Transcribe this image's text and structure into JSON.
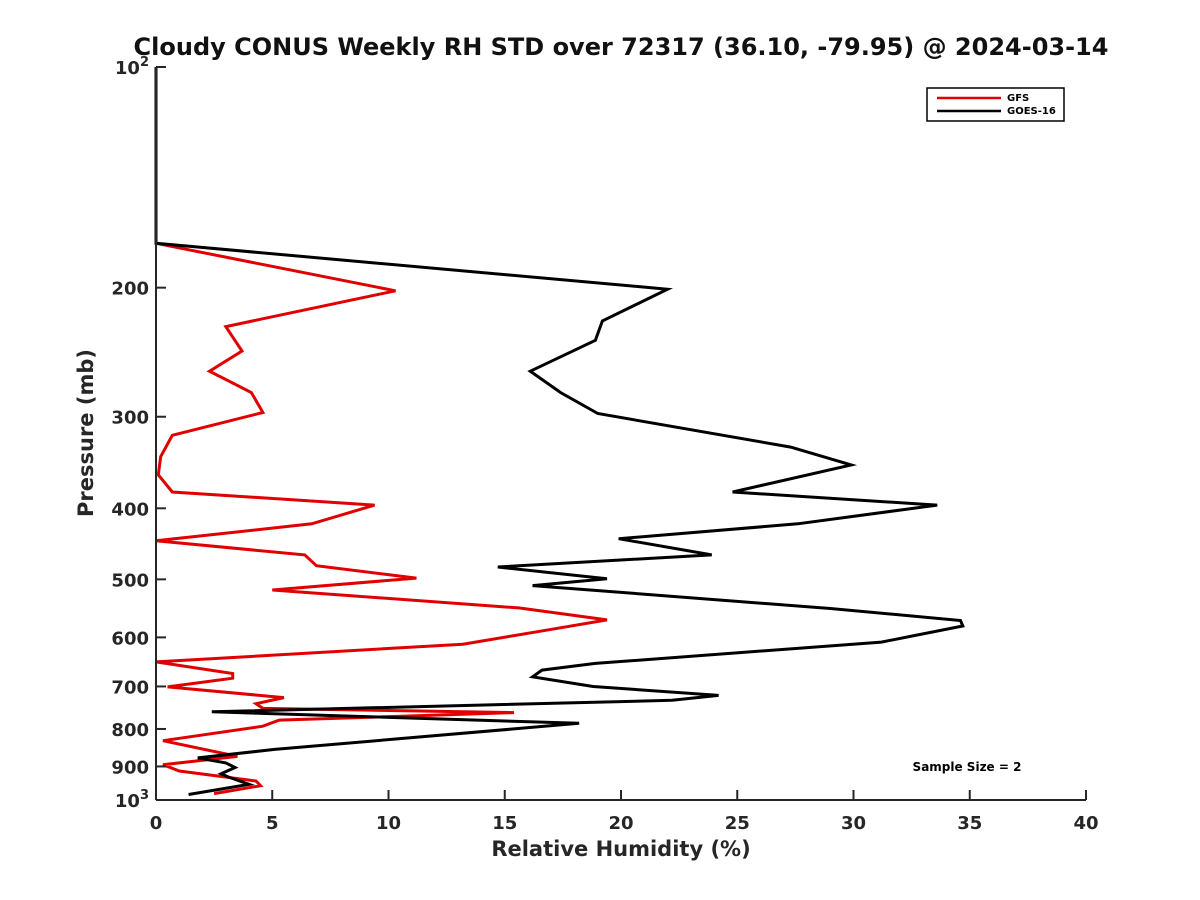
{
  "chart_data": {
    "type": "line",
    "title": "Cloudy CONUS Weekly RH STD over 72317 (36.10, -79.95) @ 2024-03-14",
    "xlabel": "Relative Humidity (%)",
    "ylabel": "Pressure (mb)",
    "xlim": [
      0,
      40
    ],
    "ylim": [
      100,
      1000
    ],
    "y_scale": "log",
    "y_reversed": true,
    "grid": false,
    "legend_position": "top-right",
    "x_ticks": [
      "0",
      "5",
      "10",
      "15",
      "20",
      "25",
      "30",
      "35",
      "40"
    ],
    "y_ticks": [
      {
        "value": 100,
        "base": "10",
        "exp": "2"
      },
      {
        "value": 200,
        "label": "200"
      },
      {
        "value": 300,
        "label": "300"
      },
      {
        "value": 400,
        "label": "400"
      },
      {
        "value": 500,
        "label": "500"
      },
      {
        "value": 600,
        "label": "600"
      },
      {
        "value": 700,
        "label": "700"
      },
      {
        "value": 800,
        "label": "800"
      },
      {
        "value": 900,
        "label": "900"
      },
      {
        "value": 1000,
        "base": "10",
        "exp": "3"
      }
    ],
    "series": [
      {
        "name": "GFS",
        "color": "#e00000",
        "points": [
          [
            0,
            100
          ],
          [
            0,
            174
          ],
          [
            10.3,
            202
          ],
          [
            3.0,
            226
          ],
          [
            3.7,
            244
          ],
          [
            2.3,
            260
          ],
          [
            4.1,
            278
          ],
          [
            4.6,
            296
          ],
          [
            0.7,
            318
          ],
          [
            0.2,
            340
          ],
          [
            0.1,
            360
          ],
          [
            0.7,
            380
          ],
          [
            9.4,
            396
          ],
          [
            6.7,
            420
          ],
          [
            0,
            443
          ],
          [
            6.4,
            463
          ],
          [
            6.9,
            479
          ],
          [
            11.2,
            498
          ],
          [
            5.0,
            517
          ],
          [
            15.6,
            547
          ],
          [
            19.4,
            568
          ],
          [
            17.3,
            583
          ],
          [
            13.2,
            613
          ],
          [
            0,
            648
          ],
          [
            3.3,
            672
          ],
          [
            3.3,
            682
          ],
          [
            0.5,
            701
          ],
          [
            5.5,
            725
          ],
          [
            4.3,
            739
          ],
          [
            4.6,
            750
          ],
          [
            15.4,
            760
          ],
          [
            5.3,
            778
          ],
          [
            4.6,
            793
          ],
          [
            0.3,
            830
          ],
          [
            3.5,
            872
          ],
          [
            0.3,
            895
          ],
          [
            1.0,
            913
          ],
          [
            4.3,
            942
          ],
          [
            4.5,
            956
          ],
          [
            2.5,
            980
          ]
        ]
      },
      {
        "name": "GOES-16",
        "color": "#000000",
        "points": [
          [
            0,
            100
          ],
          [
            0,
            174
          ],
          [
            22.0,
            201
          ],
          [
            19.2,
            222
          ],
          [
            18.9,
            236
          ],
          [
            16.1,
            260
          ],
          [
            17.4,
            278
          ],
          [
            19.0,
            297
          ],
          [
            27.3,
            330
          ],
          [
            29.9,
            349
          ],
          [
            24.8,
            380
          ],
          [
            33.6,
            396
          ],
          [
            27.6,
            420
          ],
          [
            19.9,
            440
          ],
          [
            23.9,
            463
          ],
          [
            14.7,
            481
          ],
          [
            19.4,
            499
          ],
          [
            16.2,
            510
          ],
          [
            29.0,
            548
          ],
          [
            34.6,
            569
          ],
          [
            34.7,
            579
          ],
          [
            31.2,
            609
          ],
          [
            18.9,
            651
          ],
          [
            16.6,
            665
          ],
          [
            16.2,
            679
          ],
          [
            18.8,
            700
          ],
          [
            24.2,
            720
          ],
          [
            22.2,
            731
          ],
          [
            2.4,
            758
          ],
          [
            18.2,
            786
          ],
          [
            5.1,
            853
          ],
          [
            1.8,
            876
          ],
          [
            3.0,
            890
          ],
          [
            3.4,
            903
          ],
          [
            2.8,
            921
          ],
          [
            3.1,
            930
          ],
          [
            4.0,
            952
          ],
          [
            1.4,
            983
          ]
        ]
      }
    ],
    "annotation": "Sample Size = 2"
  }
}
